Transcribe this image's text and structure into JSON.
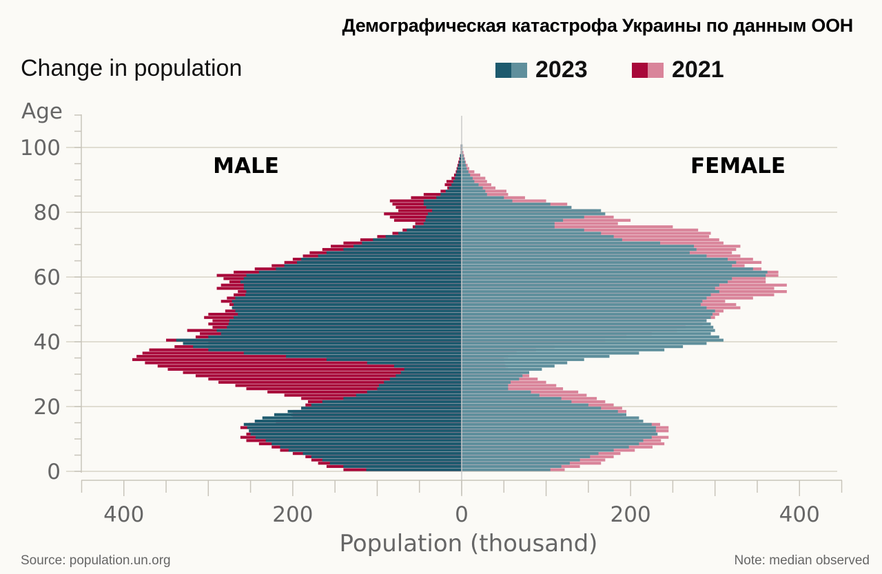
{
  "header": {
    "title": "Демографическая катастрофа Украины по данным ООН",
    "subtitle": "Change in population"
  },
  "legend": [
    {
      "label": "2023",
      "dark": "#1d5a6e",
      "light": "#5f8f9c"
    },
    {
      "label": "2021",
      "dark": "#a8083a",
      "light": "#d9849a"
    }
  ],
  "footer": {
    "source": "Source: population.un.org",
    "note": "Note: median observed"
  },
  "chart_data": {
    "type": "bar",
    "subtype": "population-pyramid",
    "title": "Демографическая катастрофа Украины по данным ООН",
    "subtitle": "Change in population",
    "xlabel": "Population (thousand)",
    "ylabel": "Age",
    "xlim": [
      -450,
      450
    ],
    "ylim": [
      0,
      100
    ],
    "x_ticks": [
      400,
      200,
      0,
      200,
      400
    ],
    "x_tick_values": [
      -400,
      -200,
      0,
      200,
      400
    ],
    "y_ticks": [
      0,
      20,
      40,
      60,
      80,
      100
    ],
    "grid": true,
    "legend_placement": "top-right",
    "annotations": [
      "MALE",
      "FEMALE"
    ],
    "colors": {
      "male_2023": "#1d5a6e",
      "female_2023": "#5f8f9c",
      "male_2021": "#a8083a",
      "female_2021": "#d9849a"
    },
    "ages": [
      0,
      1,
      2,
      3,
      4,
      5,
      6,
      7,
      8,
      9,
      10,
      11,
      12,
      13,
      14,
      15,
      16,
      17,
      18,
      19,
      20,
      21,
      22,
      23,
      24,
      25,
      26,
      27,
      28,
      29,
      30,
      31,
      32,
      33,
      34,
      35,
      36,
      37,
      38,
      39,
      40,
      41,
      42,
      43,
      44,
      45,
      46,
      47,
      48,
      49,
      50,
      51,
      52,
      53,
      54,
      55,
      56,
      57,
      58,
      59,
      60,
      61,
      62,
      63,
      64,
      65,
      66,
      67,
      68,
      69,
      70,
      71,
      72,
      73,
      74,
      75,
      76,
      77,
      78,
      79,
      80,
      81,
      82,
      83,
      84,
      85,
      86,
      87,
      88,
      89,
      90,
      91,
      92,
      93,
      94,
      95,
      96,
      97,
      98,
      99,
      100
    ],
    "series": [
      {
        "name": "2023 male",
        "sex": "male",
        "year": "2023",
        "values": [
          113,
          140,
          156,
          165,
          178,
          188,
          205,
          215,
          225,
          232,
          244,
          250,
          252,
          254,
          258,
          245,
          236,
          222,
          206,
          190,
          178,
          165,
          140,
          125,
          112,
          100,
          98,
          92,
          85,
          78,
          72,
          68,
          80,
          112,
          160,
          208,
          258,
          300,
          318,
          330,
          338,
          300,
          285,
          290,
          278,
          276,
          275,
          270,
          265,
          268,
          272,
          270,
          272,
          268,
          256,
          255,
          258,
          258,
          262,
          258,
          255,
          240,
          220,
          210,
          195,
          190,
          170,
          160,
          140,
          128,
          118,
          105,
          90,
          75,
          65,
          55,
          45,
          43,
          42,
          40,
          35,
          42,
          45,
          45,
          30,
          25,
          19,
          15,
          12,
          10,
          8,
          7,
          6,
          5,
          4,
          3,
          2,
          2,
          1,
          1,
          1
        ]
      },
      {
        "name": "2021 male",
        "sex": "male",
        "year": "2021",
        "values": [
          140,
          160,
          170,
          178,
          185,
          200,
          215,
          225,
          240,
          255,
          262,
          255,
          248,
          262,
          252,
          220,
          200,
          202,
          200,
          190,
          185,
          182,
          190,
          210,
          230,
          255,
          268,
          288,
          300,
          315,
          330,
          348,
          360,
          375,
          390,
          385,
          378,
          370,
          340,
          300,
          350,
          315,
          310,
          325,
          295,
          300,
          295,
          305,
          300,
          280,
          270,
          275,
          285,
          278,
          270,
          265,
          290,
          285,
          275,
          282,
          290,
          270,
          245,
          225,
          210,
          200,
          188,
          180,
          165,
          155,
          140,
          120,
          100,
          82,
          70,
          58,
          55,
          80,
          85,
          92,
          75,
          78,
          82,
          85,
          60,
          45,
          25,
          17,
          20,
          18,
          12,
          9,
          7,
          6,
          5,
          4,
          3,
          2,
          1,
          1,
          1
        ]
      },
      {
        "name": "2023 female",
        "sex": "female",
        "year": "2023",
        "values": [
          105,
          118,
          128,
          140,
          152,
          162,
          180,
          198,
          210,
          215,
          225,
          232,
          230,
          230,
          225,
          215,
          210,
          195,
          185,
          165,
          150,
          130,
          118,
          92,
          82,
          55,
          55,
          58,
          68,
          72,
          80,
          95,
          110,
          125,
          145,
          175,
          210,
          240,
          262,
          290,
          310,
          305,
          295,
          300,
          298,
          295,
          290,
          295,
          297,
          300,
          290,
          283,
          285,
          290,
          295,
          305,
          300,
          305,
          315,
          320,
          360,
          362,
          345,
          320,
          325,
          315,
          290,
          270,
          278,
          275,
          235,
          190,
          180,
          165,
          145,
          110,
          110,
          120,
          145,
          170,
          165,
          130,
          105,
          60,
          50,
          30,
          28,
          25,
          20,
          15,
          13,
          10,
          8,
          6,
          5,
          4,
          3,
          2,
          1,
          1,
          1
        ]
      },
      {
        "name": "2021 female",
        "sex": "female",
        "year": "2021",
        "values": [
          122,
          140,
          165,
          170,
          180,
          188,
          205,
          226,
          240,
          236,
          245,
          230,
          245,
          245,
          235,
          210,
          195,
          190,
          195,
          190,
          180,
          170,
          160,
          148,
          138,
          120,
          112,
          100,
          90,
          80,
          70,
          55,
          52,
          51,
          50,
          55,
          65,
          88,
          110,
          140,
          170,
          195,
          225,
          255,
          265,
          285,
          290,
          300,
          305,
          310,
          330,
          325,
          312,
          345,
          370,
          385,
          370,
          385,
          360,
          360,
          375,
          375,
          355,
          335,
          355,
          345,
          330,
          320,
          325,
          330,
          310,
          305,
          293,
          295,
          280,
          250,
          185,
          200,
          180,
          165,
          160,
          130,
          125,
          100,
          75,
          55,
          53,
          40,
          35,
          30,
          28,
          22,
          15,
          9,
          7,
          5,
          4,
          3,
          2,
          1,
          1
        ]
      }
    ]
  }
}
